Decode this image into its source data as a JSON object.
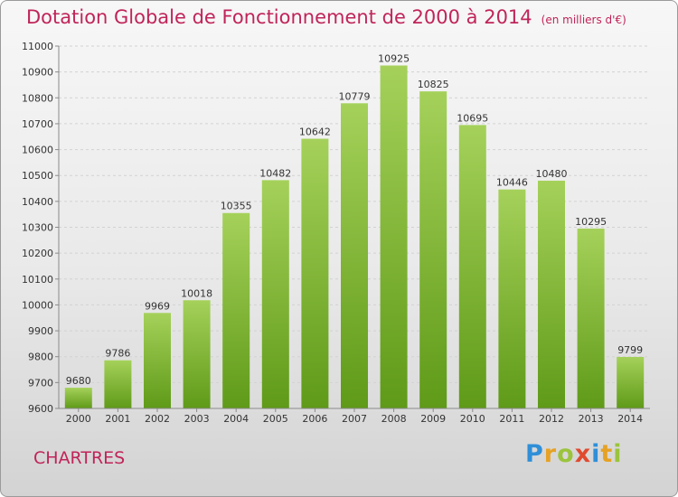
{
  "title": "Dotation Globale de Fonctionnement de 2000 à 2014",
  "units": "(en milliers d'€)",
  "town": "CHARTRES",
  "logo": {
    "text": "Proxiti",
    "colors": [
      "#2f8fd8",
      "#e6a224",
      "#9bc43c",
      "#e04a2f",
      "#2f8fd8",
      "#e6a224",
      "#9bc43c"
    ]
  },
  "colors": {
    "bar_top": "#a5d15a",
    "bar_bottom": "#5f9a18",
    "accent": "#c0245a",
    "grid": "#d2d2d2"
  },
  "chart_data": {
    "type": "bar",
    "title": "Dotation Globale de Fonctionnement de 2000 à 2014",
    "xlabel": "",
    "ylabel": "",
    "categories": [
      "2000",
      "2001",
      "2002",
      "2003",
      "2004",
      "2005",
      "2006",
      "2007",
      "2008",
      "2009",
      "2010",
      "2011",
      "2012",
      "2013",
      "2014"
    ],
    "values": [
      9680,
      9786,
      9969,
      10018,
      10355,
      10482,
      10642,
      10779,
      10925,
      10825,
      10695,
      10446,
      10480,
      10295,
      9799
    ],
    "ylim": [
      9600,
      11000
    ],
    "yticks": [
      9600,
      9700,
      9800,
      9900,
      10000,
      10100,
      10200,
      10300,
      10400,
      10500,
      10600,
      10700,
      10800,
      10900,
      11000
    ],
    "grid": true,
    "data_labels": true,
    "legend": "none"
  }
}
